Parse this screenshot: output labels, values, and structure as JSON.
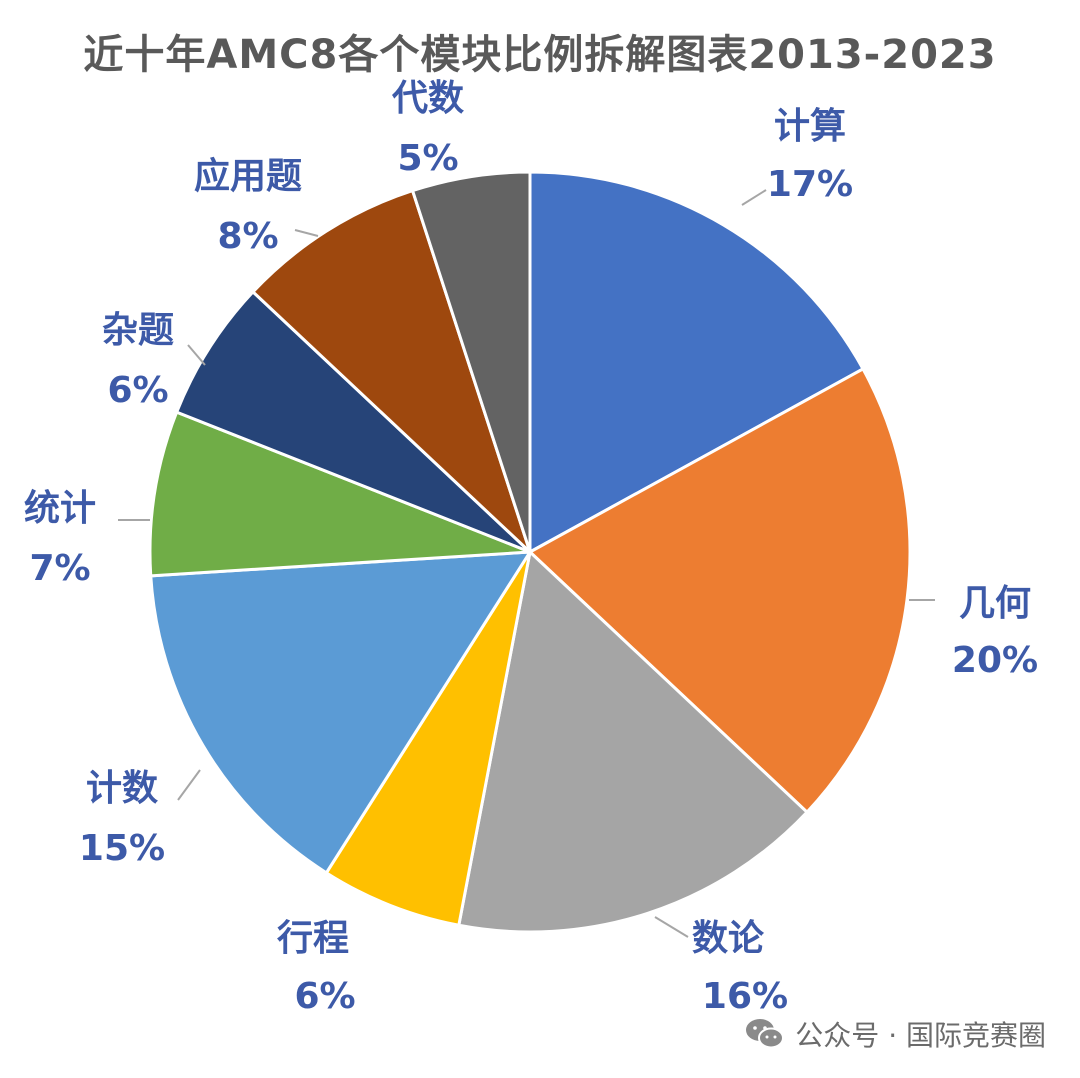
{
  "chart_data": {
    "type": "pie",
    "title": "近十年AMC8各个模块比例拆解图表2013-2023",
    "start_angle_deg": 0,
    "direction": "clockwise",
    "slices": [
      {
        "name": "计算",
        "value": 17,
        "label": "17%",
        "color": "#4472C4"
      },
      {
        "name": "几何",
        "value": 20,
        "label": "20%",
        "color": "#ED7D31"
      },
      {
        "name": "数论",
        "value": 16,
        "label": "16%",
        "color": "#A5A5A5"
      },
      {
        "name": "行程",
        "value": 6,
        "label": "6%",
        "color": "#FFC000"
      },
      {
        "name": "计数",
        "value": 15,
        "label": "15%",
        "color": "#5B9BD5"
      },
      {
        "name": "统计",
        "value": 7,
        "label": "7%",
        "color": "#70AD47"
      },
      {
        "name": "杂题",
        "value": 6,
        "label": "6%",
        "color": "#264478"
      },
      {
        "name": "应用题",
        "value": 8,
        "label": "8%",
        "color": "#9E480E"
      },
      {
        "name": "代数",
        "value": 5,
        "label": "5%",
        "color": "#636363"
      }
    ]
  },
  "watermark": {
    "text": "公众号 · 国际竞赛圈",
    "icon": "wechat-icon"
  }
}
